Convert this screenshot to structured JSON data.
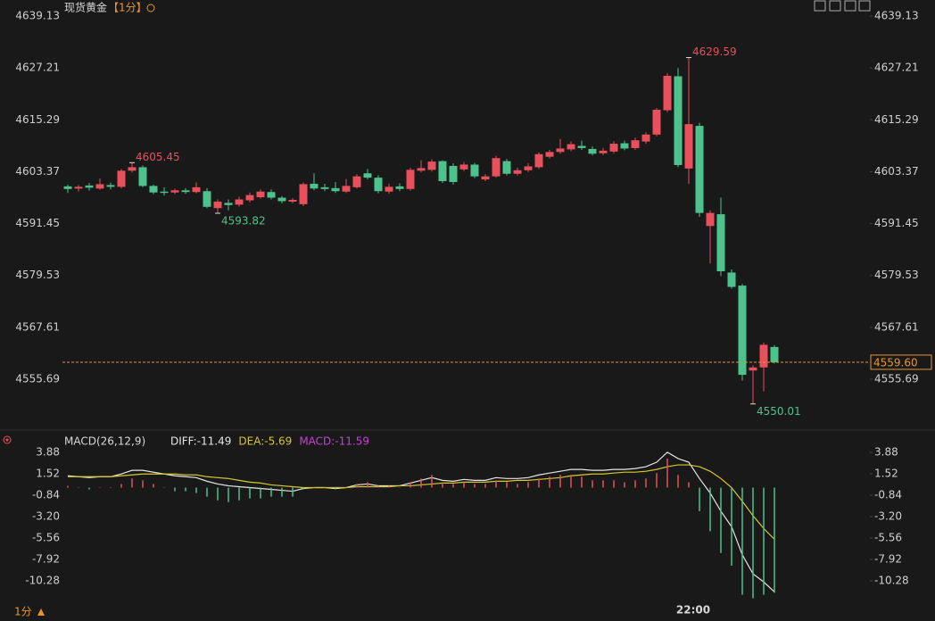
{
  "chart_data": [
    {
      "type": "candlestick",
      "title": "现货黄金",
      "period": "【1分】",
      "categories": [
        null,
        null,
        null,
        null,
        null,
        null,
        null,
        null,
        null,
        null,
        null,
        null,
        null,
        null,
        null,
        null,
        null,
        null,
        null,
        null,
        null,
        null,
        null,
        null,
        null,
        null,
        null,
        null,
        null,
        null,
        null,
        null,
        null,
        null,
        null,
        null,
        null,
        null,
        null,
        null,
        null,
        null,
        null,
        null,
        null,
        null,
        null,
        null,
        null,
        null,
        null,
        null,
        null,
        null,
        null,
        null,
        null,
        null,
        "22:00",
        null,
        null,
        null,
        null,
        null,
        null,
        null,
        null
      ],
      "open": [
        4600.0,
        4599.5,
        4600.2,
        4599.5,
        4600.3,
        4599.9,
        4603.6,
        4604.4,
        4600.1,
        4598.8,
        4598.6,
        4599.1,
        4598.7,
        4598.9,
        4595.0,
        4596.2,
        4595.8,
        4596.8,
        4597.5,
        4598.7,
        4597.4,
        4596.5,
        4595.9,
        4600.6,
        4599.8,
        4599.6,
        4598.8,
        4599.8,
        4603.0,
        4602.0,
        4598.8,
        4600.0,
        4599.4,
        4603.6,
        4603.8,
        4605.8,
        4604.7,
        4603.9,
        4605.0,
        4601.6,
        4602.3,
        4605.8,
        4602.9,
        4603.7,
        4604.4,
        4606.8,
        4607.9,
        4608.5,
        4609.3,
        4608.6,
        4607.6,
        4608.0,
        4609.9,
        4608.8,
        4610.3,
        4611.9,
        4617.5,
        4625.3,
        4604.1,
        4613.9,
        4590.9,
        4593.6,
        4580.2,
        4577.2,
        4557.7,
        4558.4,
        4563.1
      ],
      "high": [
        4600.4,
        4600.3,
        4600.8,
        4601.8,
        4600.9,
        4604.0,
        4605.45,
        4604.8,
        4600.4,
        4599.8,
        4599.5,
        4599.6,
        4600.9,
        4599.6,
        4597.0,
        4597.0,
        4597.6,
        4598.6,
        4599.3,
        4599.3,
        4597.8,
        4597.3,
        4600.9,
        4603.0,
        4600.6,
        4601.0,
        4601.7,
        4602.8,
        4604.0,
        4602.6,
        4600.6,
        4600.7,
        4604.3,
        4606.0,
        4606.2,
        4606.0,
        4605.3,
        4605.6,
        4605.4,
        4602.8,
        4607.0,
        4606.3,
        4604.3,
        4605.3,
        4607.8,
        4608.4,
        4610.9,
        4610.3,
        4610.5,
        4609.2,
        4608.8,
        4610.4,
        4610.5,
        4611.2,
        4612.4,
        4618.0,
        4626.0,
        4627.2,
        4629.59,
        4614.6,
        4594.5,
        4597.4,
        4580.9,
        4577.6,
        4558.9,
        4564.1,
        4563.5
      ],
      "low": [
        4598.5,
        4598.8,
        4599.0,
        4599.2,
        4599.3,
        4599.6,
        4603.2,
        4599.8,
        4598.2,
        4597.9,
        4598.2,
        4598.3,
        4598.4,
        4595.0,
        4593.82,
        4594.5,
        4595.4,
        4596.3,
        4597.2,
        4597.0,
        4596.1,
        4596.1,
        4595.5,
        4599.1,
        4598.9,
        4598.5,
        4598.5,
        4599.5,
        4601.6,
        4598.4,
        4598.3,
        4598.9,
        4599.0,
        4603.2,
        4603.4,
        4600.8,
        4600.4,
        4603.5,
        4601.9,
        4601.2,
        4602.0,
        4602.5,
        4602.5,
        4603.3,
        4604.0,
        4606.4,
        4607.5,
        4608.1,
        4608.4,
        4607.1,
        4607.2,
        4607.6,
        4608.3,
        4608.4,
        4609.8,
        4611.5,
        4617.1,
        4604.4,
        4600.6,
        4593.0,
        4582.3,
        4579.4,
        4576.5,
        4555.4,
        4550.01,
        4552.9,
        4559.3
      ],
      "close": [
        4599.4,
        4599.9,
        4599.7,
        4600.5,
        4599.9,
        4603.6,
        4604.4,
        4600.1,
        4598.6,
        4598.5,
        4599.1,
        4598.7,
        4599.8,
        4595.3,
        4596.5,
        4595.7,
        4597.0,
        4598.0,
        4598.8,
        4597.4,
        4596.6,
        4596.9,
        4600.5,
        4599.5,
        4599.4,
        4598.9,
        4600.1,
        4602.3,
        4602.0,
        4598.9,
        4599.9,
        4599.4,
        4603.8,
        4604.2,
        4605.7,
        4601.2,
        4601.0,
        4605.0,
        4602.3,
        4602.3,
        4606.5,
        4602.9,
        4603.7,
        4604.6,
        4607.4,
        4607.9,
        4608.7,
        4609.7,
        4608.8,
        4607.5,
        4608.2,
        4609.8,
        4608.7,
        4610.6,
        4611.9,
        4617.6,
        4625.4,
        4604.9,
        4614.3,
        4593.9,
        4593.9,
        4580.5,
        4576.9,
        4556.7,
        4558.4,
        4563.6,
        4559.6
      ],
      "up_color": "#e8505b",
      "down_color": "#4cc38c",
      "ylim": [
        4544.42,
        4640.77
      ],
      "yticks": [
        4639.13,
        4627.21,
        4615.29,
        4603.37,
        4591.45,
        4579.53,
        4567.61,
        4555.69
      ],
      "annotations": [
        {
          "candle": 6,
          "field": "high"
        },
        {
          "candle": 14,
          "field": "low"
        },
        {
          "candle": 58,
          "field": "high"
        },
        {
          "candle": 64,
          "field": "low"
        }
      ],
      "last_price": {
        "value": 4559.6,
        "label": "4559.60",
        "color": "#e8962c"
      }
    },
    {
      "type": "macd",
      "title": "MACD(26,12,9)",
      "series": [
        {
          "name": "DIFF:-11.49",
          "color": "#e6e6e6",
          "style": "line",
          "values": [
            1.3,
            1.2,
            1.1,
            1.2,
            1.2,
            1.5,
            1.9,
            1.9,
            1.7,
            1.5,
            1.3,
            1.2,
            1.1,
            0.7,
            0.4,
            0.2,
            0.1,
            0.0,
            -0.1,
            -0.2,
            -0.3,
            -0.4,
            -0.1,
            0.0,
            0.0,
            -0.1,
            0.0,
            0.3,
            0.4,
            0.2,
            0.2,
            0.2,
            0.5,
            0.8,
            1.1,
            0.8,
            0.7,
            0.9,
            0.8,
            0.8,
            1.1,
            1.0,
            1.0,
            1.1,
            1.4,
            1.6,
            1.8,
            2.0,
            2.0,
            1.9,
            1.9,
            2.0,
            2.0,
            2.1,
            2.3,
            2.8,
            3.9,
            3.2,
            2.8,
            1.0,
            -0.6,
            -2.6,
            -4.3,
            -7.4,
            -9.5,
            -10.4,
            -11.49
          ]
        },
        {
          "name": "DEA:-5.69",
          "color": "#d9c72c",
          "style": "line",
          "values": [
            1.2,
            1.2,
            1.2,
            1.2,
            1.2,
            1.3,
            1.4,
            1.5,
            1.5,
            1.5,
            1.5,
            1.4,
            1.4,
            1.2,
            1.1,
            1.0,
            0.8,
            0.6,
            0.5,
            0.3,
            0.2,
            0.1,
            0.0,
            0.0,
            0.0,
            0.0,
            0.0,
            0.1,
            0.1,
            0.1,
            0.1,
            0.2,
            0.2,
            0.3,
            0.4,
            0.5,
            0.5,
            0.6,
            0.6,
            0.6,
            0.7,
            0.7,
            0.8,
            0.8,
            0.9,
            1.0,
            1.1,
            1.3,
            1.4,
            1.5,
            1.5,
            1.6,
            1.7,
            1.7,
            1.8,
            2.0,
            2.3,
            2.5,
            2.5,
            2.3,
            1.8,
            1.0,
            0.0,
            -1.5,
            -3.1,
            -4.5,
            -5.69
          ]
        },
        {
          "name": "MACD:-11.59",
          "color": "#c83fd6",
          "style": "histogram",
          "up_color": "#e8505b",
          "down_color": "#4cc38c",
          "values": [
            0.2,
            0.0,
            -0.2,
            0.0,
            0.0,
            0.4,
            1.0,
            0.8,
            0.4,
            0.0,
            -0.4,
            -0.4,
            -0.6,
            -1.0,
            -1.4,
            -1.6,
            -1.4,
            -1.2,
            -1.2,
            -1.0,
            -1.0,
            -1.0,
            -0.2,
            0.0,
            0.0,
            -0.2,
            0.0,
            0.4,
            0.6,
            0.2,
            0.2,
            0.0,
            0.6,
            1.0,
            1.4,
            0.6,
            0.4,
            0.6,
            0.4,
            0.4,
            0.8,
            0.6,
            0.4,
            0.6,
            1.0,
            1.2,
            1.4,
            1.4,
            1.2,
            0.8,
            0.8,
            0.8,
            0.6,
            0.8,
            1.0,
            1.6,
            3.2,
            1.4,
            0.6,
            -2.6,
            -4.8,
            -7.2,
            -8.6,
            -11.8,
            -12.2,
            -11.8,
            -11.59
          ]
        }
      ],
      "ylim": [
        -12.34,
        5.75
      ],
      "yticks": [
        3.88,
        1.52,
        -0.84,
        {
          "value": -3.2,
          "label": "-3.20"
        },
        -5.56,
        -7.92,
        -10.28
      ]
    }
  ],
  "footer": {
    "period": "1分"
  }
}
